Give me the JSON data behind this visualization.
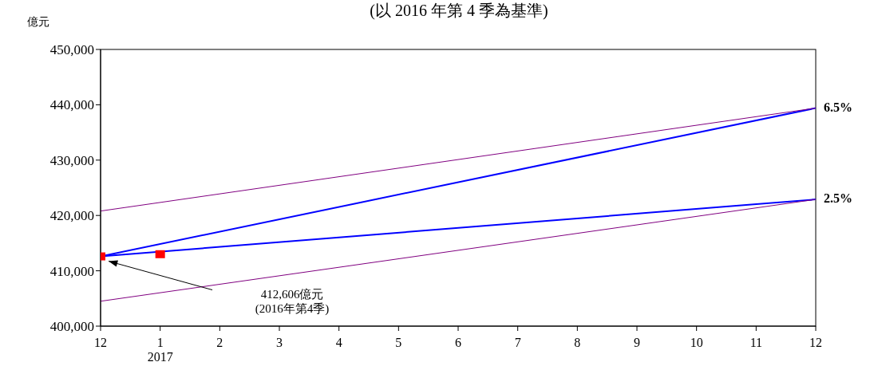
{
  "chart_data": {
    "type": "line",
    "title": "(以 2016 年第 4 季為基準)",
    "ylabel": "億元",
    "categories": [
      "12",
      "1\n2017",
      "2",
      "3",
      "4",
      "5",
      "6",
      "7",
      "8",
      "9",
      "10",
      "11",
      "12"
    ],
    "series": [
      {
        "name": "6.5%",
        "color": "#0000ff",
        "values": [
          412600,
          null,
          null,
          null,
          null,
          null,
          null,
          null,
          null,
          null,
          null,
          null,
          439400
        ]
      },
      {
        "name": "2.5%",
        "color": "#0000ff",
        "values": [
          412600,
          null,
          null,
          null,
          null,
          null,
          null,
          null,
          null,
          null,
          null,
          null,
          422900
        ]
      },
      {
        "color": "#800080",
        "values": [
          420800,
          null,
          null,
          null,
          null,
          null,
          null,
          null,
          null,
          null,
          null,
          null,
          439400
        ]
      },
      {
        "color": "#800080",
        "values": [
          404500,
          null,
          null,
          null,
          null,
          null,
          null,
          null,
          null,
          null,
          null,
          null,
          422900
        ]
      },
      {
        "type": "scatter",
        "color": "#ff0000",
        "marker": "square",
        "values": [
          412600,
          413000,
          null,
          null,
          null,
          null,
          null,
          null,
          null,
          null,
          null,
          null,
          null
        ]
      }
    ],
    "ylim": [
      400000,
      450000
    ],
    "yticks": [
      {
        "value": 400000,
        "label": "400,000"
      },
      {
        "value": 410000,
        "label": "410,000"
      },
      {
        "value": 420000,
        "label": "420,000"
      },
      {
        "value": 430000,
        "label": "430,000"
      },
      {
        "value": 440000,
        "label": "440,000"
      },
      {
        "value": 450000,
        "label": "450,000"
      }
    ],
    "annotations": [
      "412,606億元\n(2016年第4季)"
    ],
    "grid": false,
    "legend": false
  }
}
